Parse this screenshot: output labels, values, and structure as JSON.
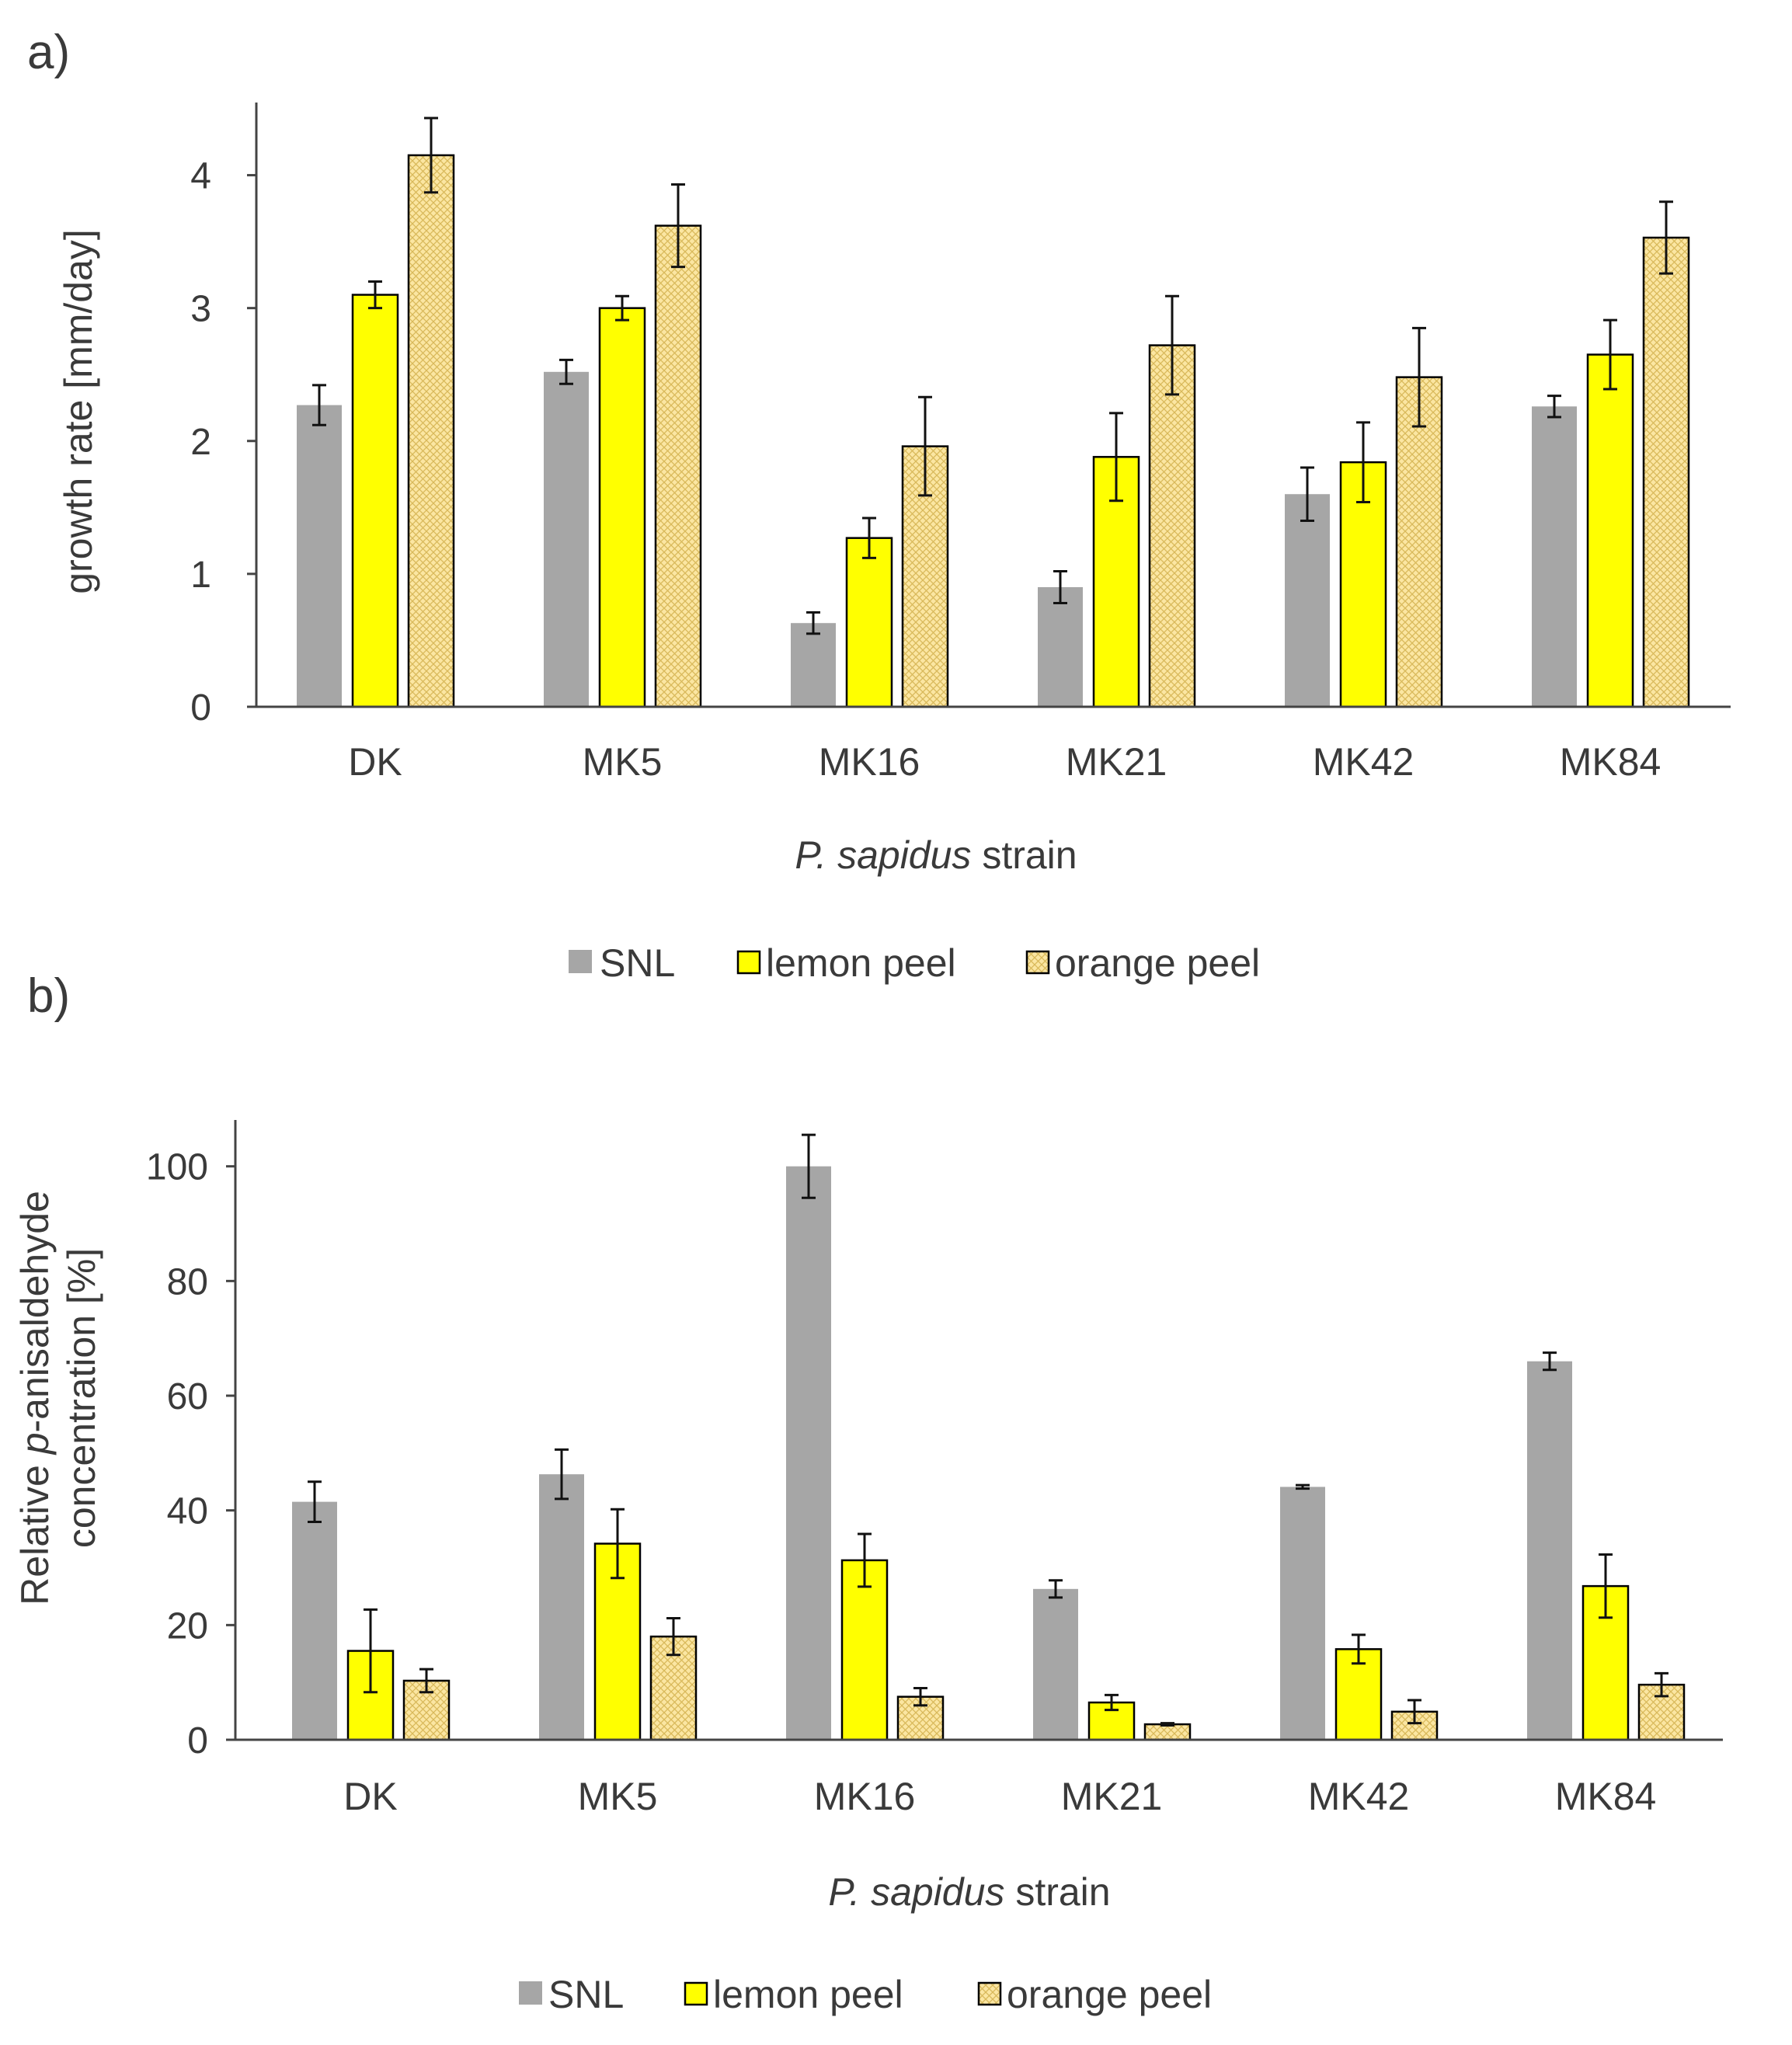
{
  "colors": {
    "snl": "#a6a6a6",
    "lemon": "#ffff00",
    "orange_bg": "#fbe6a2",
    "orange_hatch": "#d9b95a",
    "axis": "#444444"
  },
  "chart_data": [
    {
      "panel_label": "a)",
      "type": "bar",
      "categories": [
        "DK",
        "MK5",
        "MK16",
        "MK21",
        "MK42",
        "MK84"
      ],
      "xlabel_italic": "P. sapidus",
      "xlabel_rest": " strain",
      "ylabel": "growth rate [mm/day]",
      "ylim": [
        0,
        4.5
      ],
      "yticks": [
        0,
        1,
        2,
        3,
        4
      ],
      "legend": [
        "SNL",
        "lemon peel",
        "orange peel"
      ],
      "series": [
        {
          "name": "SNL",
          "values": [
            2.27,
            2.52,
            0.63,
            0.9,
            1.6,
            2.26
          ],
          "errors": [
            0.15,
            0.09,
            0.08,
            0.12,
            0.2,
            0.08
          ]
        },
        {
          "name": "lemon peel",
          "values": [
            3.1,
            3.0,
            1.27,
            1.88,
            1.84,
            2.65
          ],
          "errors": [
            0.1,
            0.09,
            0.15,
            0.33,
            0.3,
            0.26
          ]
        },
        {
          "name": "orange peel",
          "values": [
            4.15,
            3.62,
            1.96,
            2.72,
            2.48,
            3.53
          ],
          "errors": [
            0.28,
            0.31,
            0.37,
            0.37,
            0.37,
            0.27
          ]
        }
      ]
    },
    {
      "panel_label": "b)",
      "type": "bar",
      "categories": [
        "DK",
        "MK5",
        "MK16",
        "MK21",
        "MK42",
        "MK84"
      ],
      "xlabel_italic": "P. sapidus",
      "xlabel_rest": " strain",
      "ylabel_line1_pre": "Relative ",
      "ylabel_line1_italic": "p",
      "ylabel_line1_post": "-anisaldehyde",
      "ylabel_line2": "concentration [%]",
      "ylim": [
        0,
        107
      ],
      "yticks": [
        0,
        20,
        40,
        60,
        80,
        100
      ],
      "legend": [
        "SNL",
        "lemon peel",
        "orange peel"
      ],
      "series": [
        {
          "name": "SNL",
          "values": [
            41.5,
            46.3,
            100,
            26.3,
            44.1,
            66
          ],
          "errors": [
            3.5,
            4.3,
            5.5,
            1.5,
            0.3,
            1.5
          ]
        },
        {
          "name": "lemon peel",
          "values": [
            15.5,
            34.2,
            31.3,
            6.5,
            15.8,
            26.8
          ],
          "errors": [
            7.2,
            6.0,
            4.6,
            1.3,
            2.5,
            5.5
          ]
        },
        {
          "name": "orange peel",
          "values": [
            10.3,
            18.0,
            7.5,
            2.7,
            4.9,
            9.6
          ],
          "errors": [
            2.0,
            3.2,
            1.5,
            0.2,
            2.0,
            2.0
          ]
        }
      ]
    }
  ]
}
